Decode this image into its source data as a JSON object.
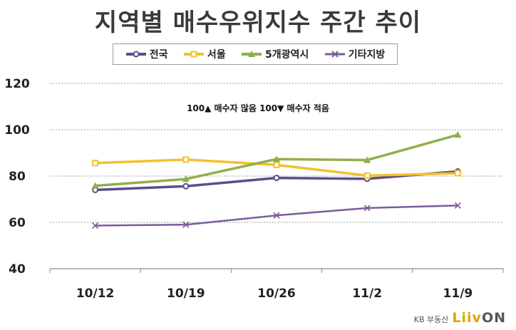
{
  "title": "지역별 매수우위지수 주간 추이",
  "note": "100▲ 매수자 많음 100▼ 매수자 적음",
  "brand": {
    "text": "KB 부동산",
    "logo_part1": "Liiv",
    "logo_part2": "ON"
  },
  "colors": {
    "전국": "#5b4e8c",
    "서울": "#f2c12e",
    "5개광역시": "#8fb04a",
    "기타지방": "#7b5b9e"
  },
  "chart_data": {
    "type": "line",
    "title": "지역별 매수우위지수 주간 추이",
    "xlabel": "",
    "ylabel": "",
    "categories": [
      "10/12",
      "10/19",
      "10/26",
      "11/2",
      "11/9"
    ],
    "ylim": [
      40,
      120
    ],
    "yticks": [
      40,
      60,
      80,
      100,
      120
    ],
    "grid": true,
    "legend": "top",
    "series": [
      {
        "name": "전국",
        "marker": "circle",
        "values": [
          74.0,
          75.6,
          79.2,
          78.8,
          82.0
        ]
      },
      {
        "name": "서울",
        "marker": "square",
        "values": [
          85.6,
          87.1,
          84.8,
          80.2,
          81.2
        ]
      },
      {
        "name": "5개광역시",
        "marker": "triangle",
        "values": [
          75.8,
          78.7,
          87.3,
          86.9,
          97.8
        ]
      },
      {
        "name": "기타지방",
        "marker": "x",
        "values": [
          58.6,
          59.0,
          63.0,
          66.2,
          67.3
        ]
      }
    ]
  }
}
